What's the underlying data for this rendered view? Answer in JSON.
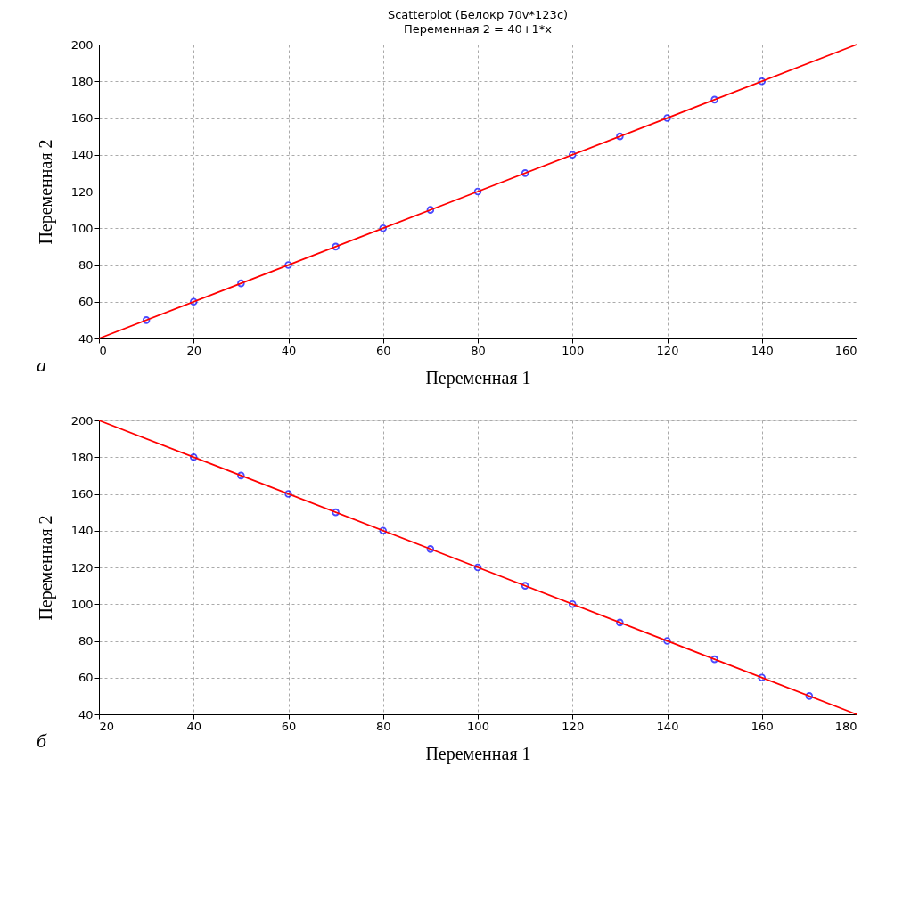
{
  "chart_data": [
    {
      "type": "scatter",
      "title": "Scatterplot (Белокр 70v*123c)",
      "subtitle": "Переменная 2 = 40+1*x",
      "xlabel": "Переменная 1",
      "ylabel": "Переменная 2",
      "annotations": [
        "а"
      ],
      "series": [
        {
          "color": "#0000ff",
          "marker": "circle",
          "x": [
            10,
            20,
            30,
            40,
            50,
            60,
            70,
            80,
            90,
            100,
            110,
            120,
            130,
            140
          ],
          "values": [
            50,
            60,
            70,
            80,
            90,
            100,
            110,
            120,
            130,
            140,
            150,
            160,
            170,
            180
          ]
        },
        {
          "type": "line",
          "color": "#ff0000",
          "x": [
            0,
            160
          ],
          "values": [
            40,
            200
          ]
        }
      ],
      "xlim": [
        0,
        160
      ],
      "xticks": [
        0,
        20,
        40,
        60,
        80,
        100,
        120,
        140,
        160
      ],
      "ylim": [
        40,
        200
      ],
      "yticks": [
        40,
        60,
        80,
        100,
        120,
        140,
        160,
        180,
        200
      ],
      "grid": true
    },
    {
      "type": "scatter",
      "xlabel": "Переменная 1",
      "ylabel": "Переменная 2",
      "annotations": [
        "б"
      ],
      "series": [
        {
          "color": "#0000ff",
          "marker": "circle",
          "x": [
            40,
            50,
            60,
            70,
            80,
            90,
            100,
            110,
            120,
            130,
            140,
            150,
            160,
            170
          ],
          "values": [
            180,
            170,
            160,
            150,
            140,
            130,
            120,
            110,
            100,
            90,
            80,
            70,
            60,
            50
          ]
        },
        {
          "type": "line",
          "color": "#ff0000",
          "x": [
            20,
            180
          ],
          "values": [
            200,
            40
          ]
        }
      ],
      "xlim": [
        20,
        180
      ],
      "xticks": [
        20,
        40,
        60,
        80,
        100,
        120,
        140,
        160,
        180
      ],
      "ylim": [
        40,
        200
      ],
      "yticks": [
        40,
        60,
        80,
        100,
        120,
        140,
        160,
        180,
        200
      ],
      "grid": true
    }
  ]
}
